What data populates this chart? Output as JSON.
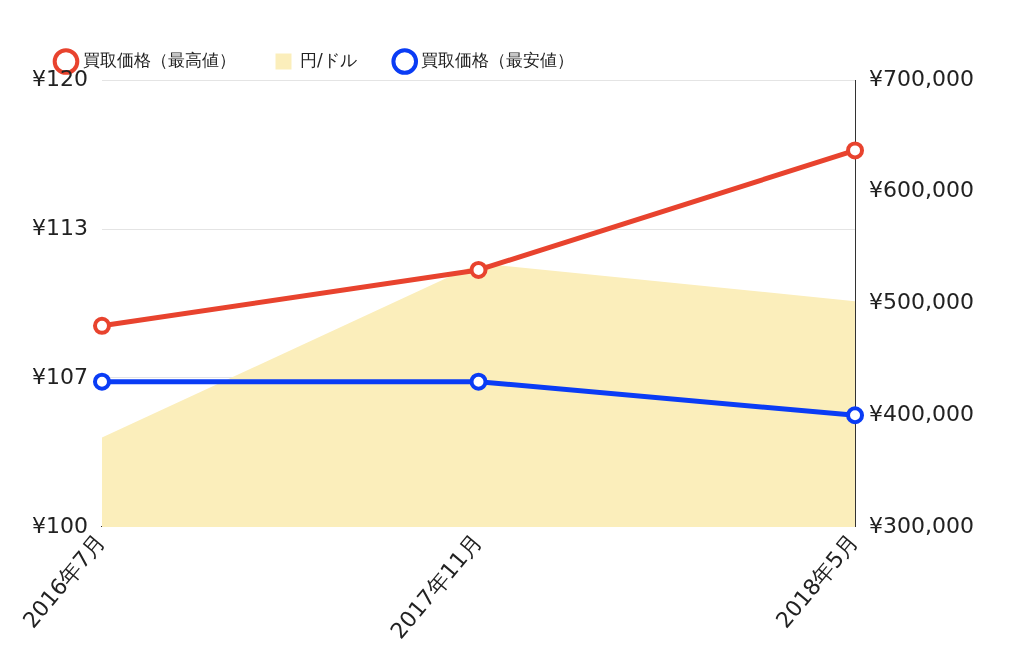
{
  "chart_data": {
    "type": "line",
    "categories": [
      "2016年7月",
      "2017年11月",
      "2018年5月"
    ],
    "series": [
      {
        "name": "買取価格（最高値）",
        "axis": "y2",
        "marker": "circle",
        "color": "#e8432e",
        "values": [
          480000,
          530000,
          637000
        ]
      },
      {
        "name": "円/ドル",
        "type": "area",
        "color": "#fbeebb",
        "values": [
          104,
          111.8,
          110.1
        ]
      },
      {
        "name": "買取価格（最安値）",
        "axis": "y2",
        "marker": "circle",
        "color": "#0a3cf5",
        "values": [
          430000,
          430000,
          400000
        ]
      }
    ],
    "ylim": [
      100,
      120
    ],
    "yticks": [
      {
        "value": 100,
        "label": "¥100"
      },
      {
        "value": 106.67,
        "label": "¥107"
      },
      {
        "value": 113.33,
        "label": "¥113"
      },
      {
        "value": 120,
        "label": "¥120"
      }
    ],
    "y2lim": [
      300000,
      700000
    ],
    "y2ticks": [
      {
        "value": 300000,
        "label": "¥300,000"
      },
      {
        "value": 400000,
        "label": "¥400,000"
      },
      {
        "value": 500000,
        "label": "¥500,000"
      },
      {
        "value": 600000,
        "label": "¥600,000"
      },
      {
        "value": 700000,
        "label": "¥700,000"
      }
    ],
    "grid": "y",
    "legend": "top"
  }
}
